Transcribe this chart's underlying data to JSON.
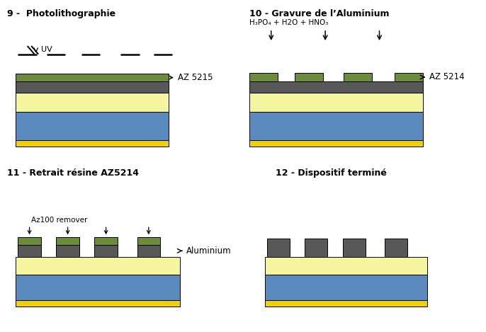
{
  "colors": {
    "green": "#6b8c3a",
    "gray": "#585858",
    "yellow_light": "#f5f5a0",
    "blue": "#5b8abf",
    "yellow": "#f0d000",
    "white": "#ffffff",
    "black": "#000000"
  },
  "titles": {
    "p9": "9 -  Photolithographie",
    "p10": "10 - Gravure de l’Aluminium",
    "p11": "11 - Retrait résine AZ5214",
    "p12": "12 - Dispositif terminé"
  },
  "labels": {
    "az5215": "AZ 5215",
    "az5214": "AZ 5214",
    "aluminium": "Aluminium",
    "uv": "UV",
    "chemical": "H₃PO₄ + H2O + HNO₃",
    "remover": "Az100 remover"
  },
  "fig_width": 6.86,
  "fig_height": 4.69
}
